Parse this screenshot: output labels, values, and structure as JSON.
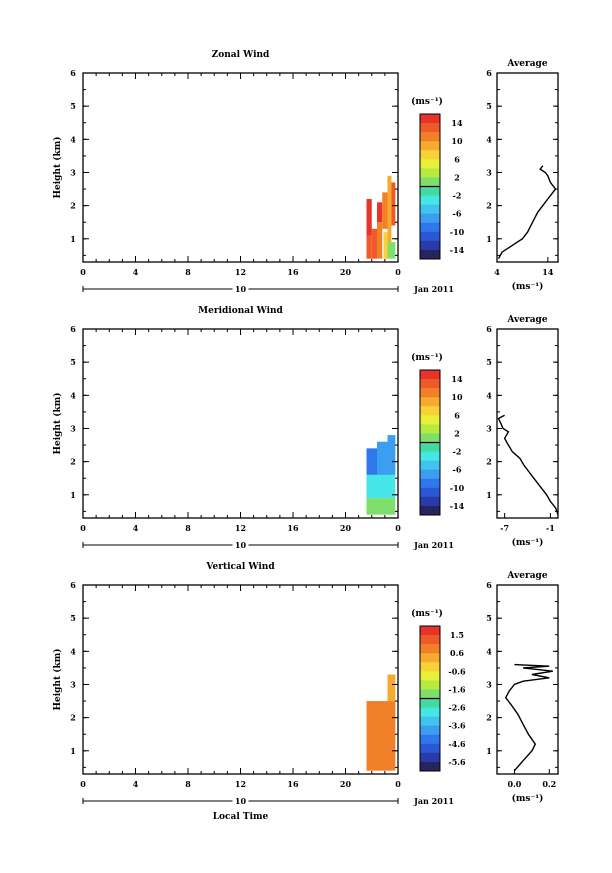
{
  "chart_data": [
    {
      "type": "heatmap",
      "title": "Zonal Wind",
      "ylabel": "Height (km)",
      "xlabel": "",
      "x_ticks": [
        "0",
        "4",
        "8",
        "12",
        "16",
        "20",
        "0"
      ],
      "y_ticks": [
        "1",
        "2",
        "3",
        "4",
        "5",
        "6"
      ],
      "xlim": [
        0,
        24
      ],
      "ylim": [
        0.3,
        6
      ],
      "date_axis": {
        "day": "10",
        "month_label": "Jan 2011"
      },
      "colorbar": {
        "unit": "(ms⁻¹)",
        "ticks": [
          "14",
          "10",
          "6",
          "2",
          "-2",
          "-6",
          "-10",
          "-14"
        ],
        "range": [
          -16,
          16
        ]
      },
      "cells": [
        {
          "t0": 21.6,
          "t1": 22.0,
          "z0": 0.4,
          "z1": 1.1,
          "v": 13
        },
        {
          "t0": 22.0,
          "t1": 22.4,
          "z0": 0.4,
          "z1": 1.3,
          "v": 12
        },
        {
          "t0": 22.4,
          "t1": 22.8,
          "z0": 0.4,
          "z1": 1.5,
          "v": 11
        },
        {
          "t0": 21.6,
          "t1": 22.0,
          "z0": 1.1,
          "z1": 2.2,
          "v": 14
        },
        {
          "t0": 22.4,
          "t1": 22.8,
          "z0": 1.5,
          "z1": 2.1,
          "v": 14
        },
        {
          "t0": 22.8,
          "t1": 23.2,
          "z0": 1.3,
          "z1": 2.4,
          "v": 11
        },
        {
          "t0": 23.2,
          "t1": 23.5,
          "z0": 0.9,
          "z1": 2.9,
          "v": 9
        },
        {
          "t0": 23.5,
          "t1": 23.8,
          "z0": 1.4,
          "z1": 2.7,
          "v": 13
        },
        {
          "t0": 23.0,
          "t1": 23.8,
          "z0": 0.4,
          "z1": 0.9,
          "v": 0
        },
        {
          "t0": 22.9,
          "t1": 23.2,
          "z0": 0.4,
          "z1": 1.2,
          "v": 7
        }
      ],
      "average": {
        "title": "Average",
        "xlabel": "(ms⁻¹)",
        "x_ticks": [
          "4",
          "14"
        ],
        "xlim": [
          4,
          16
        ],
        "x": [
          4.3,
          5,
          7,
          8,
          9,
          10,
          11,
          12,
          13,
          14,
          15,
          15.5,
          14.5,
          14,
          13.5,
          12.5,
          13
        ],
        "z": [
          0.4,
          0.6,
          0.8,
          0.9,
          1.0,
          1.2,
          1.5,
          1.8,
          2.0,
          2.2,
          2.4,
          2.5,
          2.7,
          2.9,
          3.0,
          3.1,
          3.2
        ]
      }
    },
    {
      "type": "heatmap",
      "title": "Meridional Wind",
      "ylabel": "Height (km)",
      "xlabel": "",
      "x_ticks": [
        "0",
        "4",
        "8",
        "12",
        "16",
        "20",
        "0"
      ],
      "y_ticks": [
        "1",
        "2",
        "3",
        "4",
        "5",
        "6"
      ],
      "xlim": [
        0,
        24
      ],
      "ylim": [
        0.3,
        6
      ],
      "date_axis": {
        "day": "10",
        "month_label": "Jan 2011"
      },
      "colorbar": {
        "unit": "(ms⁻¹)",
        "ticks": [
          "14",
          "10",
          "6",
          "2",
          "-2",
          "-6",
          "-10",
          "-14"
        ],
        "range": [
          -16,
          16
        ]
      },
      "cells": [
        {
          "t0": 21.6,
          "t1": 22.4,
          "z0": 1.6,
          "z1": 2.4,
          "v": -10
        },
        {
          "t0": 22.4,
          "t1": 23.2,
          "z0": 1.5,
          "z1": 2.6,
          "v": -8
        },
        {
          "t0": 23.2,
          "t1": 23.8,
          "z0": 1.6,
          "z1": 2.8,
          "v": -7
        },
        {
          "t0": 21.6,
          "t1": 23.8,
          "z0": 0.9,
          "z1": 1.6,
          "v": -3
        },
        {
          "t0": 21.6,
          "t1": 23.8,
          "z0": 0.4,
          "z1": 0.9,
          "v": 0
        }
      ],
      "average": {
        "title": "Average",
        "xlabel": "(ms⁻¹)",
        "x_ticks": [
          "-7",
          "-1"
        ],
        "xlim": [
          -8,
          0
        ],
        "x": [
          0,
          -0.3,
          -1,
          -1.5,
          -2.5,
          -3.5,
          -4.5,
          -5,
          -6,
          -6.5,
          -7,
          -6.5,
          -7.2,
          -7.6,
          -7.8,
          -7
        ],
        "z": [
          0.4,
          0.6,
          0.8,
          1.0,
          1.3,
          1.6,
          1.9,
          2.1,
          2.3,
          2.5,
          2.7,
          2.9,
          3.0,
          3.2,
          3.3,
          3.4
        ]
      }
    },
    {
      "type": "heatmap",
      "title": "Vertical Wind",
      "ylabel": "Height (km)",
      "xlabel": "Local Time",
      "x_ticks": [
        "0",
        "4",
        "8",
        "12",
        "16",
        "20",
        "0"
      ],
      "y_ticks": [
        "1",
        "2",
        "3",
        "4",
        "5",
        "6"
      ],
      "xlim": [
        0,
        24
      ],
      "ylim": [
        0.3,
        6
      ],
      "date_axis": {
        "day": "10",
        "month_label": "Jan 2011"
      },
      "colorbar": {
        "unit": "(ms⁻¹)",
        "ticks": [
          "1.5",
          "0.6",
          "-0.6",
          "-1.6",
          "-2.6",
          "-3.6",
          "-4.6",
          "-5.6"
        ],
        "range": [
          -6,
          2
        ]
      },
      "cells": [
        {
          "t0": 21.6,
          "t1": 23.8,
          "z0": 0.4,
          "z1": 2.5,
          "v": 0.5
        },
        {
          "t0": 23.2,
          "t1": 23.8,
          "z0": 2.5,
          "z1": 3.3,
          "v": 0.4
        }
      ],
      "average": {
        "title": "Average",
        "xlabel": "(ms⁻¹)",
        "x_ticks": [
          "0.0",
          "0.2"
        ],
        "xlim": [
          -0.1,
          0.25
        ],
        "x": [
          0.0,
          0.05,
          0.1,
          0.12,
          0.08,
          0.05,
          0.02,
          -0.02,
          -0.05,
          -0.03,
          0.0,
          0.05,
          0.2,
          0.1,
          0.22,
          0.05,
          0.2,
          0.0
        ],
        "z": [
          0.4,
          0.7,
          1.0,
          1.2,
          1.5,
          1.8,
          2.1,
          2.4,
          2.6,
          2.8,
          3.0,
          3.1,
          3.2,
          3.3,
          3.4,
          3.5,
          3.55,
          3.6
        ]
      }
    }
  ]
}
